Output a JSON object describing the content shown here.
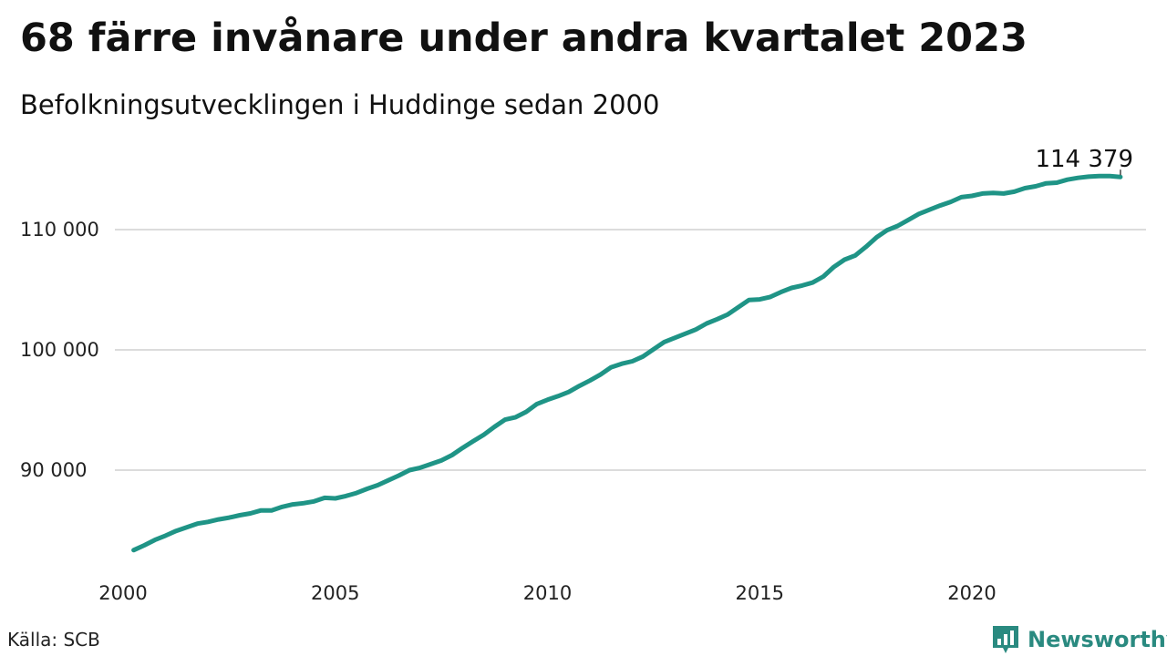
{
  "title": "68 färre invånare under andra kvartalet 2023",
  "subtitle": "Befolkningsutvecklingen i Huddinge sedan 2000",
  "source": "Källa: SCB",
  "brand": {
    "name": "Newsworthy",
    "icon": "newsworthy-logo-icon",
    "color": "#2a8a80"
  },
  "chart_data": {
    "type": "line",
    "x_axis": {
      "min": 2000,
      "max": 2023.5,
      "ticks": [
        2000,
        2005,
        2010,
        2015,
        2020
      ],
      "tick_labels": [
        "2000",
        "2005",
        "2010",
        "2015",
        "2020"
      ]
    },
    "y_axis": {
      "min": 80000,
      "max": 116000,
      "ticks": [
        90000,
        100000,
        110000
      ],
      "tick_labels": [
        "90 000",
        "100 000",
        "110 000"
      ]
    },
    "grid": true,
    "line_color": "#1f9486",
    "end_label": "114 379",
    "series": [
      {
        "values": [
          [
            2000.25,
            83350
          ],
          [
            2000.5,
            83750
          ],
          [
            2000.75,
            84200
          ],
          [
            2001.0,
            84550
          ],
          [
            2001.25,
            84950
          ],
          [
            2001.5,
            85250
          ],
          [
            2001.75,
            85550
          ],
          [
            2002.0,
            85700
          ],
          [
            2002.25,
            85900
          ],
          [
            2002.5,
            86050
          ],
          [
            2002.75,
            86250
          ],
          [
            2003.0,
            86400
          ],
          [
            2003.25,
            86650
          ],
          [
            2003.5,
            86650
          ],
          [
            2003.75,
            86950
          ],
          [
            2004.0,
            87150
          ],
          [
            2004.25,
            87250
          ],
          [
            2004.5,
            87400
          ],
          [
            2004.75,
            87700
          ],
          [
            2005.0,
            87650
          ],
          [
            2005.25,
            87850
          ],
          [
            2005.5,
            88100
          ],
          [
            2005.75,
            88450
          ],
          [
            2006.0,
            88750
          ],
          [
            2006.25,
            89150
          ],
          [
            2006.5,
            89550
          ],
          [
            2006.75,
            90000
          ],
          [
            2007.0,
            90200
          ],
          [
            2007.25,
            90500
          ],
          [
            2007.5,
            90800
          ],
          [
            2007.75,
            91250
          ],
          [
            2008.0,
            91850
          ],
          [
            2008.25,
            92400
          ],
          [
            2008.5,
            92950
          ],
          [
            2008.75,
            93600
          ],
          [
            2009.0,
            94200
          ],
          [
            2009.25,
            94400
          ],
          [
            2009.5,
            94850
          ],
          [
            2009.75,
            95500
          ],
          [
            2010.0,
            95850
          ],
          [
            2010.25,
            96150
          ],
          [
            2010.5,
            96500
          ],
          [
            2010.75,
            97000
          ],
          [
            2011.0,
            97450
          ],
          [
            2011.25,
            97950
          ],
          [
            2011.5,
            98550
          ],
          [
            2011.75,
            98850
          ],
          [
            2012.0,
            99050
          ],
          [
            2012.25,
            99450
          ],
          [
            2012.5,
            100050
          ],
          [
            2012.75,
            100650
          ],
          [
            2013.0,
            101000
          ],
          [
            2013.25,
            101350
          ],
          [
            2013.5,
            101700
          ],
          [
            2013.75,
            102200
          ],
          [
            2014.0,
            102550
          ],
          [
            2014.25,
            102950
          ],
          [
            2014.5,
            103550
          ],
          [
            2014.75,
            104150
          ],
          [
            2015.0,
            104200
          ],
          [
            2015.25,
            104400
          ],
          [
            2015.5,
            104800
          ],
          [
            2015.75,
            105150
          ],
          [
            2016.0,
            105350
          ],
          [
            2016.25,
            105600
          ],
          [
            2016.5,
            106100
          ],
          [
            2016.75,
            106900
          ],
          [
            2017.0,
            107500
          ],
          [
            2017.25,
            107850
          ],
          [
            2017.5,
            108550
          ],
          [
            2017.75,
            109350
          ],
          [
            2018.0,
            109950
          ],
          [
            2018.25,
            110300
          ],
          [
            2018.5,
            110800
          ],
          [
            2018.75,
            111300
          ],
          [
            2019.0,
            111650
          ],
          [
            2019.25,
            112000
          ],
          [
            2019.5,
            112300
          ],
          [
            2019.75,
            112700
          ],
          [
            2020.0,
            112800
          ],
          [
            2020.25,
            113000
          ],
          [
            2020.5,
            113050
          ],
          [
            2020.75,
            113000
          ],
          [
            2021.0,
            113150
          ],
          [
            2021.25,
            113450
          ],
          [
            2021.5,
            113600
          ],
          [
            2021.75,
            113850
          ],
          [
            2022.0,
            113900
          ],
          [
            2022.25,
            114150
          ],
          [
            2022.5,
            114300
          ],
          [
            2022.75,
            114400
          ],
          [
            2023.0,
            114450
          ],
          [
            2023.25,
            114447
          ],
          [
            2023.5,
            114379
          ]
        ]
      }
    ]
  }
}
